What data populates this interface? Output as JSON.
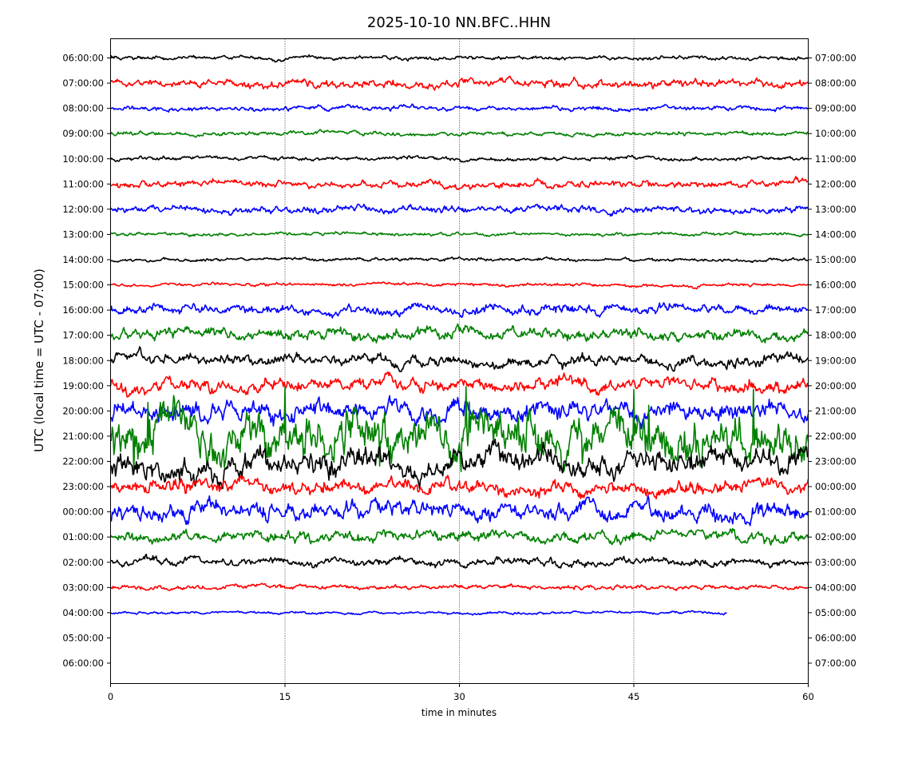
{
  "chart_data": {
    "type": "line",
    "title": "2025-10-10 NN.BFC..HHN",
    "xlabel": "time in minutes",
    "ylabel": "UTC (local time = UTC - 07:00)",
    "xlim": [
      0,
      60
    ],
    "xticks": [
      0,
      15,
      30,
      45,
      60
    ],
    "grid": "vertical dotted at 15, 30, 45",
    "left_tick_labels": [
      "06:00:00",
      "07:00:00",
      "08:00:00",
      "09:00:00",
      "10:00:00",
      "11:00:00",
      "12:00:00",
      "13:00:00",
      "14:00:00",
      "15:00:00",
      "16:00:00",
      "17:00:00",
      "18:00:00",
      "19:00:00",
      "20:00:00",
      "21:00:00",
      "22:00:00",
      "23:00:00",
      "00:00:00",
      "01:00:00",
      "02:00:00",
      "03:00:00",
      "04:00:00",
      "05:00:00",
      "06:00:00"
    ],
    "right_tick_labels": [
      "07:00:00",
      "08:00:00",
      "09:00:00",
      "10:00:00",
      "11:00:00",
      "12:00:00",
      "13:00:00",
      "14:00:00",
      "15:00:00",
      "16:00:00",
      "17:00:00",
      "18:00:00",
      "19:00:00",
      "20:00:00",
      "21:00:00",
      "22:00:00",
      "23:00:00",
      "00:00:00",
      "01:00:00",
      "02:00:00",
      "03:00:00",
      "04:00:00",
      "05:00:00",
      "06:00:00",
      "07:00:00"
    ],
    "series": [
      {
        "row": "06:00:00",
        "color": "#000000",
        "amplitude": 0.12,
        "end_minute": 60
      },
      {
        "row": "07:00:00",
        "color": "#ff0000",
        "amplitude": 0.25,
        "end_minute": 60
      },
      {
        "row": "08:00:00",
        "color": "#0000ff",
        "amplitude": 0.15,
        "end_minute": 60
      },
      {
        "row": "09:00:00",
        "color": "#008000",
        "amplitude": 0.12,
        "end_minute": 60
      },
      {
        "row": "10:00:00",
        "color": "#000000",
        "amplitude": 0.12,
        "end_minute": 60
      },
      {
        "row": "11:00:00",
        "color": "#ff0000",
        "amplitude": 0.22,
        "end_minute": 60
      },
      {
        "row": "12:00:00",
        "color": "#0000ff",
        "amplitude": 0.22,
        "end_minute": 60
      },
      {
        "row": "13:00:00",
        "color": "#008000",
        "amplitude": 0.1,
        "end_minute": 60
      },
      {
        "row": "14:00:00",
        "color": "#000000",
        "amplitude": 0.1,
        "end_minute": 60
      },
      {
        "row": "15:00:00",
        "color": "#ff0000",
        "amplitude": 0.1,
        "end_minute": 60
      },
      {
        "row": "16:00:00",
        "color": "#0000ff",
        "amplitude": 0.3,
        "end_minute": 60
      },
      {
        "row": "17:00:00",
        "color": "#008000",
        "amplitude": 0.35,
        "end_minute": 60
      },
      {
        "row": "18:00:00",
        "color": "#000000",
        "amplitude": 0.35,
        "end_minute": 60
      },
      {
        "row": "19:00:00",
        "color": "#ff0000",
        "amplitude": 0.4,
        "end_minute": 60
      },
      {
        "row": "20:00:00",
        "color": "#0000ff",
        "amplitude": 0.6,
        "end_minute": 60
      },
      {
        "row": "21:00:00",
        "color": "#008000",
        "amplitude": 1.4,
        "end_minute": 60
      },
      {
        "row": "22:00:00",
        "color": "#000000",
        "amplitude": 0.8,
        "end_minute": 60
      },
      {
        "row": "23:00:00",
        "color": "#ff0000",
        "amplitude": 0.45,
        "end_minute": 60
      },
      {
        "row": "00:00:00",
        "color": "#0000ff",
        "amplitude": 0.55,
        "end_minute": 60
      },
      {
        "row": "01:00:00",
        "color": "#008000",
        "amplitude": 0.35,
        "end_minute": 60
      },
      {
        "row": "02:00:00",
        "color": "#000000",
        "amplitude": 0.25,
        "end_minute": 60
      },
      {
        "row": "03:00:00",
        "color": "#ff0000",
        "amplitude": 0.14,
        "end_minute": 60
      },
      {
        "row": "04:00:00",
        "color": "#0000ff",
        "amplitude": 0.08,
        "end_minute": 53
      }
    ]
  }
}
